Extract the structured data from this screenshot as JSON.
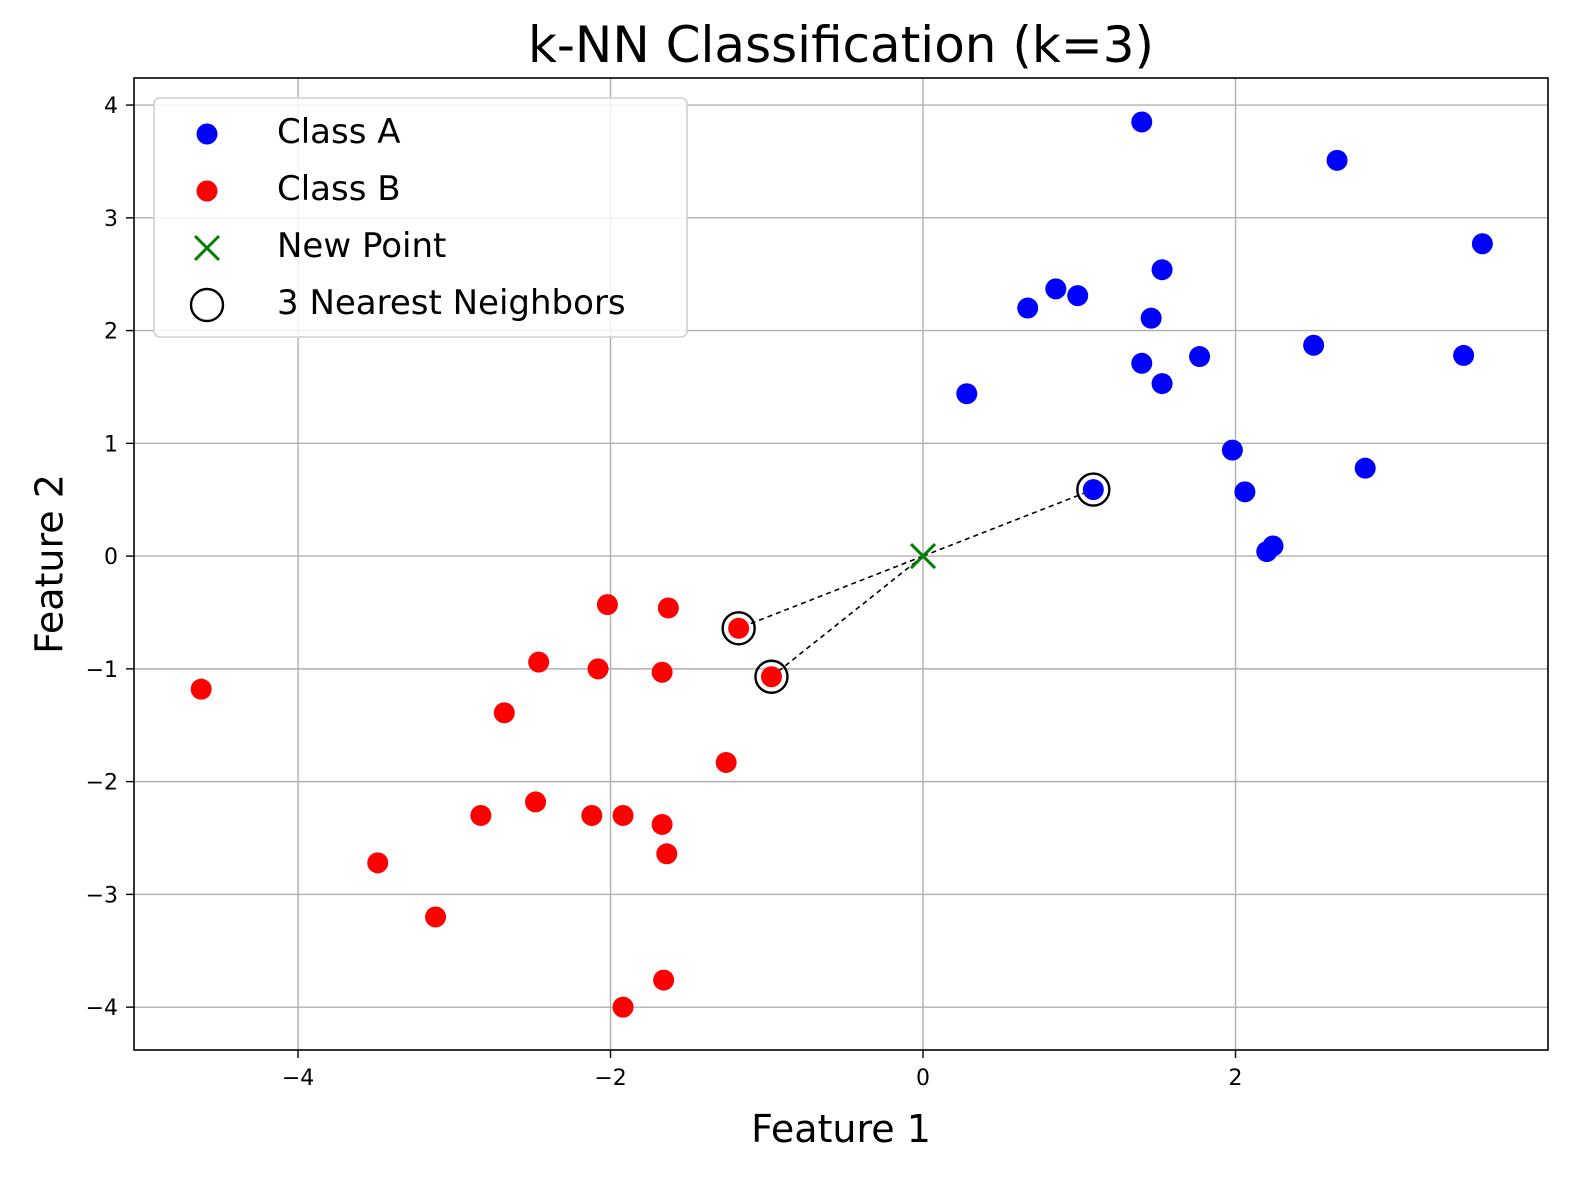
{
  "chart_data": {
    "type": "scatter",
    "title": "k-NN Classification (k=3)",
    "xlabel": "Feature 1",
    "ylabel": "Feature 2",
    "xlim": [
      -5.05,
      4.0
    ],
    "ylim": [
      -4.38,
      4.24
    ],
    "xticks": [
      -4,
      -2,
      0,
      2
    ],
    "xtick_labels": [
      "−4",
      "−2",
      "0",
      "2"
    ],
    "yticks": [
      4,
      3,
      2,
      1,
      0,
      -1,
      -2,
      -3,
      -4
    ],
    "ytick_labels": [
      "4",
      "3",
      "2",
      "1",
      "0",
      "−1",
      "−2",
      "−3",
      "−4"
    ],
    "grid": true,
    "legend_position": "upper-left",
    "series": [
      {
        "name": "Class A",
        "color": "#0000ff",
        "marker": "circle",
        "points": [
          [
            1.4,
            3.85
          ],
          [
            2.65,
            3.51
          ],
          [
            3.58,
            2.77
          ],
          [
            1.53,
            2.54
          ],
          [
            0.85,
            2.37
          ],
          [
            0.99,
            2.31
          ],
          [
            0.67,
            2.2
          ],
          [
            1.46,
            2.11
          ],
          [
            2.5,
            1.87
          ],
          [
            3.46,
            1.78
          ],
          [
            1.77,
            1.77
          ],
          [
            1.4,
            1.71
          ],
          [
            1.53,
            1.53
          ],
          [
            0.28,
            1.44
          ],
          [
            1.98,
            0.94
          ],
          [
            2.83,
            0.78
          ],
          [
            2.06,
            0.57
          ],
          [
            1.09,
            0.59
          ],
          [
            2.2,
            0.04
          ],
          [
            2.24,
            0.09
          ]
        ]
      },
      {
        "name": "Class B",
        "color": "#ff0000",
        "marker": "circle",
        "points": [
          [
            -2.02,
            -0.43
          ],
          [
            -1.63,
            -0.46
          ],
          [
            -1.18,
            -0.64
          ],
          [
            -2.46,
            -0.94
          ],
          [
            -2.08,
            -1.0
          ],
          [
            -1.67,
            -1.03
          ],
          [
            -0.97,
            -1.07
          ],
          [
            -4.62,
            -1.18
          ],
          [
            -2.68,
            -1.39
          ],
          [
            -1.26,
            -1.83
          ],
          [
            -2.48,
            -2.18
          ],
          [
            -2.83,
            -2.3
          ],
          [
            -2.12,
            -2.3
          ],
          [
            -1.92,
            -2.3
          ],
          [
            -1.67,
            -2.38
          ],
          [
            -1.64,
            -2.64
          ],
          [
            -3.49,
            -2.72
          ],
          [
            -3.12,
            -3.2
          ],
          [
            -1.66,
            -3.76
          ],
          [
            -1.92,
            -4.0
          ]
        ]
      },
      {
        "name": "New Point",
        "color": "#008000",
        "marker": "x",
        "points": [
          [
            0.0,
            0.0
          ]
        ]
      },
      {
        "name": "3 Nearest Neighbors",
        "color": "#000000",
        "marker": "open-circle",
        "points": [
          [
            1.09,
            0.59
          ],
          [
            -1.18,
            -0.64
          ],
          [
            -0.97,
            -1.07
          ]
        ]
      }
    ],
    "neighbor_lines": {
      "style": "dashed",
      "color": "#000000",
      "from": [
        0.0,
        0.0
      ],
      "to": [
        [
          1.09,
          0.59
        ],
        [
          -1.18,
          -0.64
        ],
        [
          -0.97,
          -1.07
        ]
      ]
    }
  }
}
